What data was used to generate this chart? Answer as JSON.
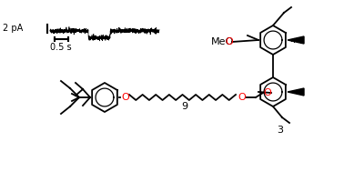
{
  "fig_width": 3.78,
  "fig_height": 1.89,
  "dpi": 100,
  "bg_color": "#ffffff",
  "trace_color": "#000000",
  "scalebar_color": "#000000",
  "label_2pA": "2 pA",
  "label_time": "0.5 s",
  "label_MeO": "MeO",
  "label_9": "9",
  "label_3": "3",
  "red_color": "#ff0000",
  "black_color": "#000000"
}
